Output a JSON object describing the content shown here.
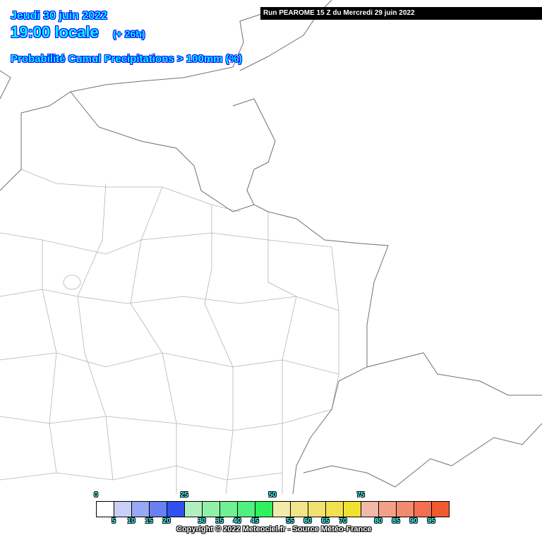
{
  "header": {
    "date": "Jeudi 30 juin 2022",
    "time": "19:00 locale",
    "lead": "(+ 26h)",
    "parameter": "Probabilité Cumul Precipitations > 100mm (%)",
    "run": "Run PEAROME 15 Z du Mercredi 29 juin 2022"
  },
  "legend": {
    "colors": [
      "#ffffff",
      "#c8d0f8",
      "#98a8f4",
      "#6880f0",
      "#3050f0",
      "#b0f0c0",
      "#90f0a8",
      "#70f090",
      "#50f080",
      "#30f060",
      "#f2eaa8",
      "#f2e488",
      "#f2e070",
      "#f2e050",
      "#f2e030",
      "#f2b8a8",
      "#f2a088",
      "#f28a70",
      "#f27050",
      "#f05a30"
    ],
    "top_labels": [
      "0",
      "25",
      "50",
      "75"
    ],
    "bottom_labels": [
      "5",
      "10",
      "15",
      "20",
      "30",
      "35",
      "40",
      "45",
      "55",
      "60",
      "65",
      "70",
      "80",
      "85",
      "90",
      "95"
    ]
  },
  "copyright": "Copyright © 2022 Meteociel.fr - Source Météo-France"
}
